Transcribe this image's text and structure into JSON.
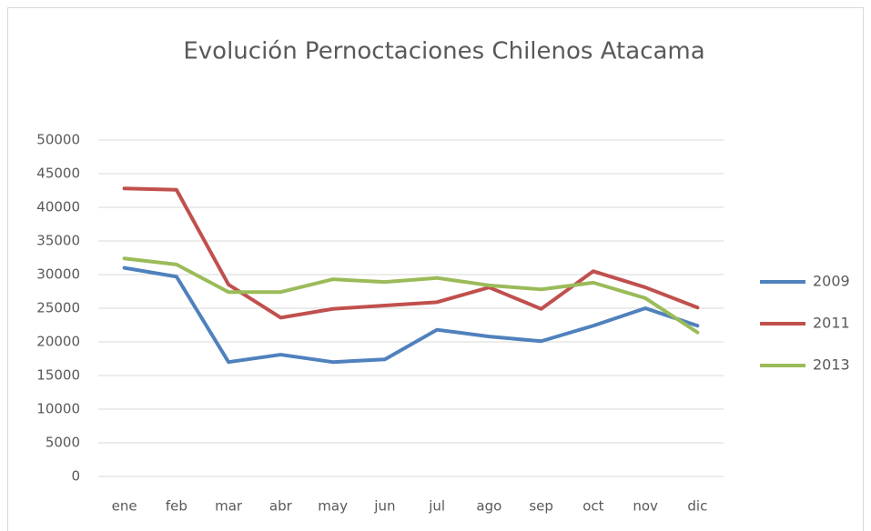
{
  "chart_data": {
    "type": "line",
    "title": "Evolución Pernoctaciones Chilenos Atacama",
    "categories": [
      "ene",
      "feb",
      "mar",
      "abr",
      "may",
      "jun",
      "jul",
      "ago",
      "sep",
      "oct",
      "nov",
      "dic"
    ],
    "series": [
      {
        "name": "2009",
        "color": "#4f81bd",
        "values": [
          31000,
          29700,
          17000,
          18100,
          17000,
          17400,
          21800,
          20800,
          20100,
          22400,
          25000,
          22400
        ]
      },
      {
        "name": "2011",
        "color": "#c0504d",
        "values": [
          42800,
          42600,
          28500,
          23600,
          24900,
          25400,
          25900,
          28100,
          24900,
          30500,
          28100,
          25100
        ]
      },
      {
        "name": "2013",
        "color": "#9bbb59",
        "values": [
          32400,
          31500,
          27400,
          27400,
          29300,
          28900,
          29500,
          28400,
          27800,
          28800,
          26500,
          21400
        ]
      }
    ],
    "ylim": [
      0,
      50000
    ],
    "yticks": [
      0,
      5000,
      10000,
      15000,
      20000,
      25000,
      30000,
      35000,
      40000,
      45000,
      50000
    ],
    "grid": true,
    "legend": "right"
  }
}
